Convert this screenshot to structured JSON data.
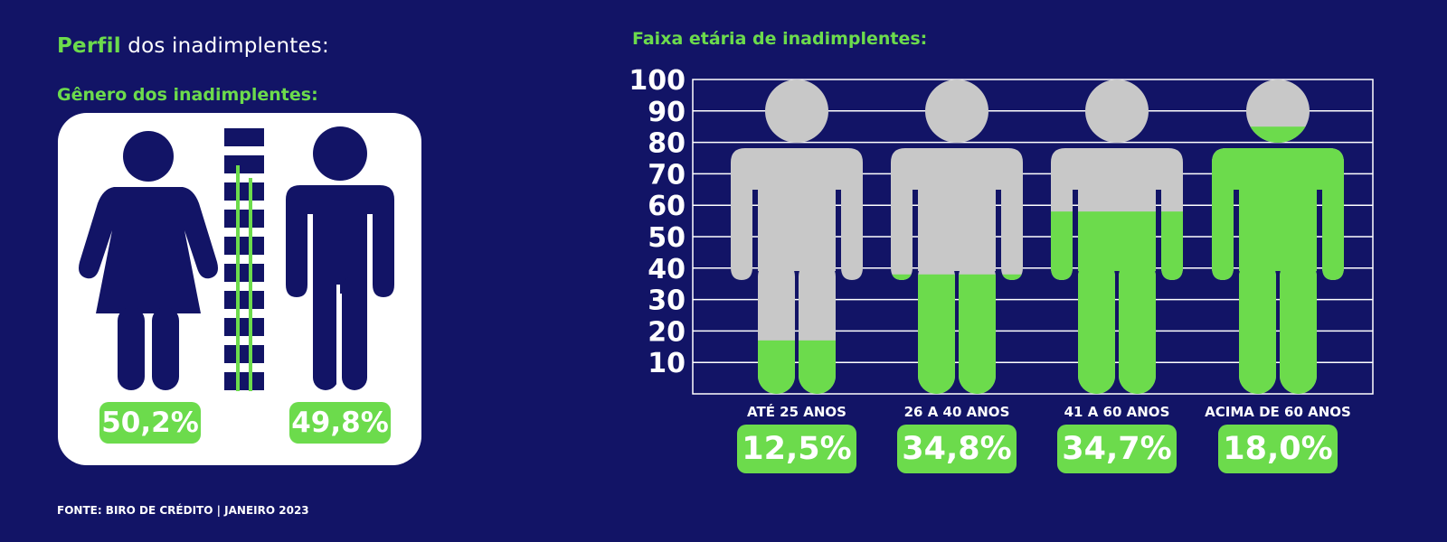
{
  "header": {
    "title_accent": "Perfil",
    "title_rest": " dos inadimplentes:"
  },
  "gender": {
    "subtitle": "Gênero dos inadimplentes:",
    "female_pct": "50,2%",
    "male_pct": "49,8%"
  },
  "age": {
    "title": "Faixa etária de inadimplentes:"
  },
  "colors": {
    "background": "#121466",
    "accent": "#6cdb4c",
    "figure_gray": "#c8c8c8",
    "figure_navy": "#121466"
  },
  "chart_data": {
    "type": "bar",
    "title": "Faixa etária de inadimplentes:",
    "categories": [
      "ATÉ 25 ANOS",
      "26 A 40 ANOS",
      "41 A 60 ANOS",
      "ACIMA DE 60 ANOS"
    ],
    "values": [
      12.5,
      34.8,
      34.7,
      18.0
    ],
    "value_labels": [
      "12,5%",
      "34,8%",
      "34,7%",
      "18,0%"
    ],
    "fill_levels": [
      17,
      38,
      58,
      85
    ],
    "y_ticks": [
      "10",
      "20",
      "30",
      "40",
      "50",
      "60",
      "70",
      "80",
      "90",
      "100"
    ],
    "ylim": [
      0,
      100
    ],
    "grid": true,
    "legend": "none"
  },
  "footer": {
    "source": "FONTE: BIRO DE CRÉDITO | JANEIRO 2023"
  }
}
